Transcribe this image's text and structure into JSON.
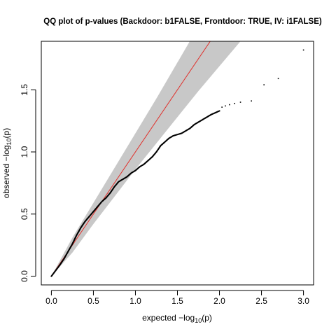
{
  "chart_data": {
    "type": "scatter",
    "title": "QQ plot of p-values (Backdoor: b1FALSE, Frontdoor: TRUE, IV: i1FALSE)",
    "xlabel": "expected -log10(p)",
    "ylabel": "observed -log10(p)",
    "xlabel_parts": {
      "pre": "expected ",
      "minus": "−",
      "log": "log",
      "sub": "10",
      "post": "(p)"
    },
    "ylabel_parts": {
      "pre": "observed ",
      "minus": "−",
      "log": "log",
      "sub": "10",
      "post": "(p)"
    },
    "xlim": [
      -0.12,
      3.12
    ],
    "ylim": [
      -0.07,
      1.89
    ],
    "xticks": [
      0,
      0.5,
      1,
      1.5,
      2,
      2.5,
      3
    ],
    "xtick_labels": [
      "0.0",
      "0.5",
      "1.0",
      "1.5",
      "2.0",
      "2.5",
      "3.0"
    ],
    "yticks": [
      0,
      0.5,
      1,
      1.5
    ],
    "ytick_labels": [
      "0.0",
      "0.5",
      "1.0",
      "1.5"
    ],
    "reference_line": {
      "slope": 1,
      "intercept": 0,
      "color": "#e0302b"
    },
    "confidence_band": {
      "color": "#c8c8c8",
      "x": [
        0.0,
        0.25,
        0.5,
        0.75,
        1.0,
        1.25,
        1.5,
        1.75,
        2.0,
        2.25
      ],
      "lower": [
        0.0,
        0.19,
        0.42,
        0.64,
        0.86,
        1.07,
        1.28,
        1.49,
        1.69,
        1.89
      ],
      "upper": [
        0.0,
        0.31,
        0.59,
        0.87,
        1.15,
        1.43,
        1.72,
        2.01,
        2.31,
        2.6
      ]
    },
    "points": {
      "color": "#000000",
      "curve": [
        [
          0.0,
          0.0
        ],
        [
          0.05,
          0.045
        ],
        [
          0.1,
          0.09
        ],
        [
          0.15,
          0.14
        ],
        [
          0.2,
          0.2
        ],
        [
          0.25,
          0.26
        ],
        [
          0.3,
          0.33
        ],
        [
          0.35,
          0.39
        ],
        [
          0.4,
          0.44
        ],
        [
          0.45,
          0.48
        ],
        [
          0.5,
          0.52
        ],
        [
          0.55,
          0.56
        ],
        [
          0.6,
          0.6
        ],
        [
          0.65,
          0.63
        ],
        [
          0.7,
          0.67
        ],
        [
          0.75,
          0.72
        ],
        [
          0.8,
          0.76
        ],
        [
          0.85,
          0.78
        ],
        [
          0.9,
          0.8
        ],
        [
          0.95,
          0.83
        ],
        [
          1.0,
          0.85
        ],
        [
          1.05,
          0.88
        ],
        [
          1.1,
          0.9
        ],
        [
          1.15,
          0.93
        ],
        [
          1.2,
          0.96
        ],
        [
          1.25,
          1.0
        ],
        [
          1.3,
          1.05
        ],
        [
          1.35,
          1.08
        ],
        [
          1.4,
          1.11
        ],
        [
          1.45,
          1.13
        ],
        [
          1.5,
          1.14
        ],
        [
          1.55,
          1.15
        ],
        [
          1.6,
          1.17
        ],
        [
          1.65,
          1.19
        ],
        [
          1.7,
          1.22
        ],
        [
          1.75,
          1.24
        ],
        [
          1.8,
          1.26
        ],
        [
          1.85,
          1.28
        ],
        [
          1.9,
          1.3
        ],
        [
          2.0,
          1.33
        ]
      ],
      "tail": [
        [
          2.03,
          1.36
        ],
        [
          2.07,
          1.37
        ],
        [
          2.12,
          1.38
        ],
        [
          2.18,
          1.39
        ],
        [
          2.25,
          1.4
        ],
        [
          2.38,
          1.41
        ],
        [
          2.53,
          1.54
        ],
        [
          2.7,
          1.59
        ],
        [
          3.0,
          1.82
        ]
      ]
    }
  }
}
